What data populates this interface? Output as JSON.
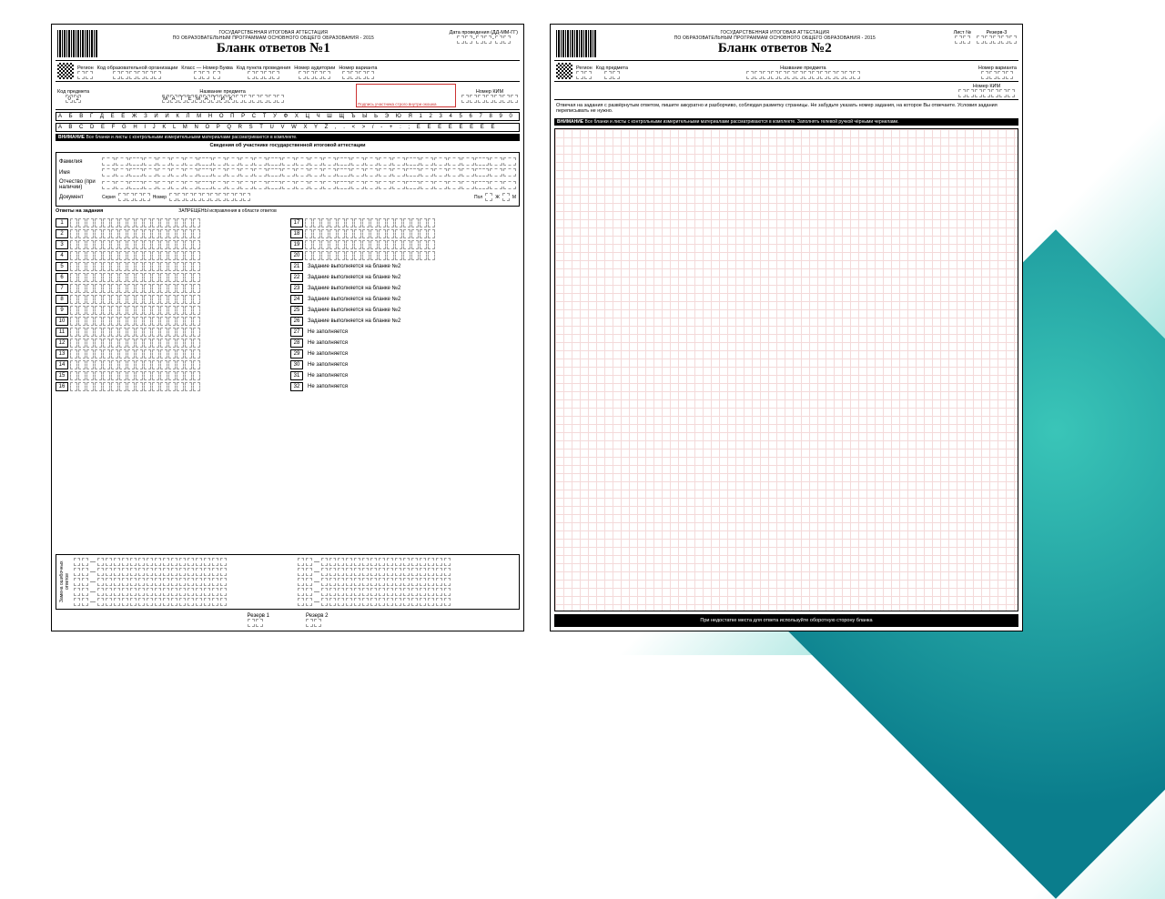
{
  "presentation": {
    "bg_gradient": [
      "#ffffff",
      "#3ac5b8"
    ],
    "accent_color": "#0a7d8c"
  },
  "common": {
    "header_line1": "ГОСУДАРСТВЕННАЯ ИТОГОВАЯ АТТЕСТАЦИЯ",
    "header_line2": "ПО ОБРАЗОВАТЕЛЬНЫМ ПРОГРАММАМ ОСНОВНОГО ОБЩЕГО ОБРАЗОВАНИЯ - 2015",
    "warn_label": "ВНИМАНИЕ",
    "warn_text": "Все бланки и листы с контрольными измерительными материалами рассматриваются в комплекте."
  },
  "form1": {
    "title": "Бланк ответов №1",
    "fields": {
      "date": "Дата проведения (ДД-ММ-ГГ)",
      "region": "Регион",
      "org_code": "Код образовательной организации",
      "class": "Класс — Номер  Буква",
      "ppe_code": "Код пункта проведения",
      "aud": "Номер аудитории",
      "variant": "Номер варианта",
      "subj_code": "Код предмета",
      "subj_name": "Название предмета",
      "kim": "Номер КИМ"
    },
    "subject_code": "02",
    "subject_name": "МАТЕМАТИК",
    "sign_note": "Подпись участника строго внутри окошка",
    "alpha_ru": "А Б В Г Д Е Ё Ж З И Й К Л М Н О П Р С Т У Ф Х Ц Ч Ш Щ Ъ Ы Ь Э Ю Я 1 2 3 4 5 6 7 8 9 0",
    "alpha_en": "A B C D E F G H I J K L M N O P Q R S T U V W X Y Z , . < > / - + : ; Ё Ё Ё Ё Ё Ё Ё Ё",
    "participant_title": "Сведения об участнике государственной итоговой аттестации",
    "personal": {
      "fam": "Фамилия",
      "name": "Имя",
      "patr": "Отчество (при наличии)",
      "doc": "Документ",
      "series": "Серия",
      "number": "Номер",
      "sex": "Пол",
      "sex_opts": [
        "Ж",
        "М"
      ]
    },
    "answers_title": "Ответы на задания",
    "prohibited": "ЗАПРЕЩЕНЫ исправления в области ответов",
    "right_notes": {
      "done_on_form2": "Задание выполняется на бланке №2",
      "not_filled": "Не заполняется"
    },
    "right_col_map": {
      "17": "",
      "18": "",
      "19": "",
      "20": "",
      "21": "done_on_form2",
      "22": "done_on_form2",
      "23": "done_on_form2",
      "24": "done_on_form2",
      "25": "done_on_form2",
      "26": "done_on_form2",
      "27": "not_filled",
      "28": "not_filled",
      "29": "not_filled",
      "30": "not_filled",
      "31": "not_filled",
      "32": "not_filled"
    },
    "replace_title": "Замена ошибочных ответов",
    "reserve": {
      "r1": "Резерв 1",
      "r2": "Резерв 2"
    }
  },
  "form2": {
    "title": "Бланк ответов №2",
    "fields": {
      "list": "Лист №",
      "reserve3": "Резерв-3",
      "region": "Регион",
      "subj_code": "Код предмета",
      "subj_name": "Название предмета",
      "variant": "Номер варианта",
      "kim": "Номер КИМ"
    },
    "instruction": "Отвечая на задания с развёрнутым ответом, пишите аккуратно и разборчиво, соблюдая разметку страницы. Не забудьте указать номер задания, на которое Вы отвечаете. Условия задания переписывать не нужно.",
    "warn2": "Все бланки и листы с контрольными измерительными материалами рассматриваются в комплекте. Заполнять гелевой ручкой чёрными чернилами.",
    "footer": "При недостатке места для ответа используйте оборотную сторону бланка"
  }
}
